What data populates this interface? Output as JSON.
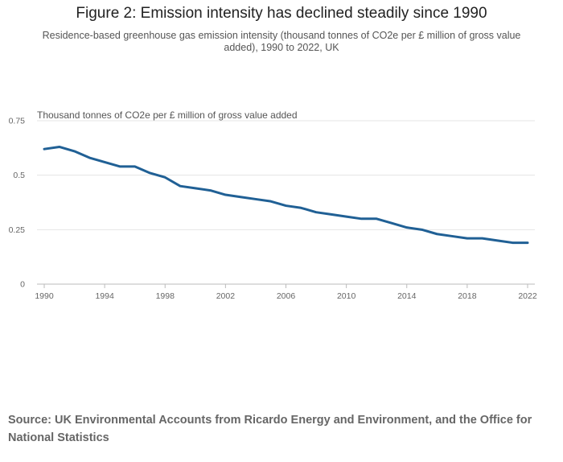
{
  "header": {
    "title": "Figure 2: Emission intensity has declined steadily since 1990",
    "subtitle": "Residence-based greenhouse gas emission intensity (thousand tonnes of CO2e per £ million of gross value added), 1990 to 2022, UK"
  },
  "footer": {
    "source": "Source: UK Environmental Accounts from Ricardo Energy and Environment, and the Office for National Statistics"
  },
  "chart_data": {
    "type": "line",
    "title": "Figure 2: Emission intensity has declined steadily since 1990",
    "subtitle": "Residence-based greenhouse gas emission intensity (thousand tonnes of CO2e per £ million of gross value added), 1990 to 2022, UK",
    "xlabel": "",
    "ylabel": "Thousand tonnes of CO2e per £ million of gross value added",
    "xlim": [
      1990,
      2022
    ],
    "ylim": [
      0,
      0.75
    ],
    "x_ticks": [
      1990,
      1994,
      1998,
      2002,
      2006,
      2010,
      2014,
      2018,
      2022
    ],
    "x_tick_labels": [
      "1990",
      "1994",
      "1998",
      "2002",
      "2006",
      "2010",
      "2014",
      "2018",
      "2022"
    ],
    "y_ticks": [
      0,
      0.25,
      0.5,
      0.75
    ],
    "y_tick_labels": [
      "0",
      "0.25",
      "0.5",
      "0.75"
    ],
    "grid": true,
    "line_color": "#206095",
    "series": [
      {
        "name": "Emission intensity",
        "x": [
          1990,
          1991,
          1992,
          1993,
          1994,
          1995,
          1996,
          1997,
          1998,
          1999,
          2000,
          2001,
          2002,
          2003,
          2004,
          2005,
          2006,
          2007,
          2008,
          2009,
          2010,
          2011,
          2012,
          2013,
          2014,
          2015,
          2016,
          2017,
          2018,
          2019,
          2020,
          2021,
          2022
        ],
        "values": [
          0.62,
          0.63,
          0.61,
          0.58,
          0.56,
          0.54,
          0.54,
          0.51,
          0.49,
          0.45,
          0.44,
          0.43,
          0.41,
          0.4,
          0.39,
          0.38,
          0.36,
          0.35,
          0.33,
          0.32,
          0.31,
          0.3,
          0.3,
          0.28,
          0.26,
          0.25,
          0.23,
          0.22,
          0.21,
          0.21,
          0.2,
          0.19,
          0.19
        ]
      }
    ]
  }
}
